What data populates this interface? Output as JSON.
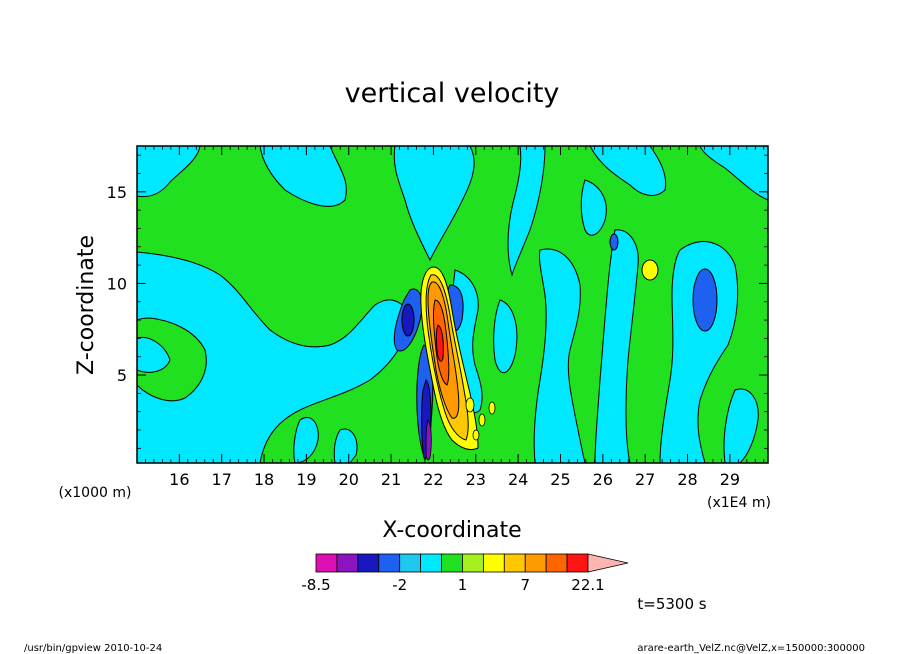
{
  "chart_data": {
    "type": "heatmap",
    "title": "vertical velocity",
    "xlabel": "X-coordinate",
    "ylabel": "Z-coordinate",
    "x_unit": "(x1E4 m)",
    "z_unit": "(x1000 m)",
    "x_ticks": [
      16,
      17,
      18,
      19,
      20,
      21,
      22,
      23,
      24,
      25,
      26,
      27,
      28,
      29
    ],
    "y_ticks": [
      5,
      10,
      15
    ],
    "xlim": [
      15.0,
      29.9
    ],
    "ylim": [
      0.2,
      17.5
    ],
    "colorbar": {
      "levels": [
        -8.5,
        -6,
        -4,
        -3,
        -2,
        -1,
        0,
        1,
        2,
        4,
        7,
        12,
        17,
        22.1
      ],
      "labels": [
        "-8.5",
        "-2",
        "1",
        "7",
        "22.1"
      ],
      "label_values": [
        -8.5,
        -2,
        1,
        7,
        22.1
      ],
      "colors": [
        "#dd0fb4",
        "#8a14c0",
        "#1818c0",
        "#1e60f0",
        "#1ec8f0",
        "#00e8ff",
        "#20e020",
        "#a6f020",
        "#ffff00",
        "#ffc800",
        "#ff9a00",
        "#ff6400",
        "#ff1414",
        "#ff7c7c",
        "#ffb4b4"
      ]
    },
    "features": [
      {
        "kind": "updraft_core",
        "x": 22.2,
        "z": 6.5,
        "max": 22.1
      },
      {
        "kind": "downdraft",
        "x": 21.9,
        "z": 3.0,
        "min": -8.5
      },
      {
        "kind": "downdraft",
        "x": 21.6,
        "z": 7.5
      },
      {
        "kind": "downdraft",
        "x": 22.6,
        "z": 8.5
      },
      {
        "kind": "downdraft",
        "x": 28.4,
        "z": 9.3
      },
      {
        "kind": "downdraft",
        "x": 26.3,
        "z": 12.3
      },
      {
        "kind": "updraft",
        "x": 27.1,
        "z": 10.9
      }
    ]
  },
  "annotations": {
    "time": "t=5300 s",
    "footer_left": "/usr/bin/gpview   2010-10-24",
    "footer_right": "arare-earth_VelZ.nc@VelZ,x=150000:300000"
  }
}
